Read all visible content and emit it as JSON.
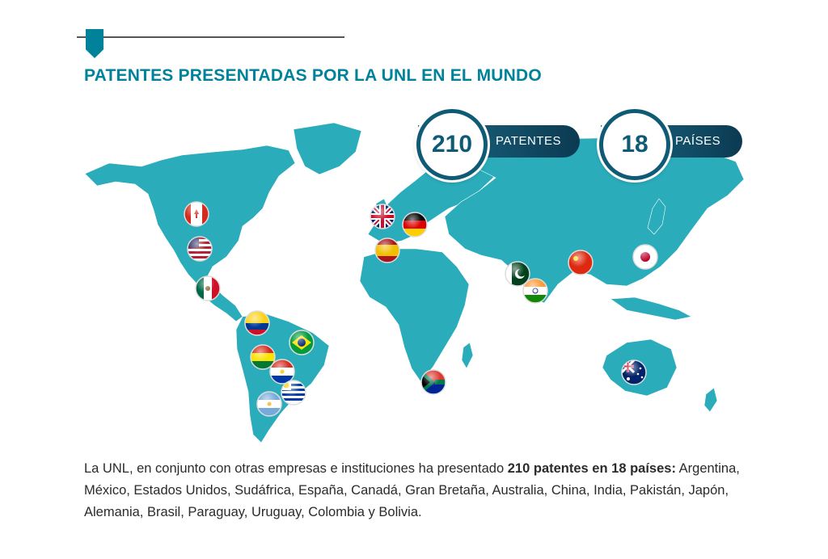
{
  "title": "PATENTES PRESENTADAS POR LA UNL EN EL MUNDO",
  "stats": [
    {
      "value": "210",
      "label": "PATENTES"
    },
    {
      "value": "18",
      "label": "PAÍSES"
    }
  ],
  "description": {
    "intro": "La UNL, en conjunto con otras empresas e instituciones ha presentado",
    "highlight": "210 patentes en 18 países:",
    "countries": "Argentina, México, Estados Unidos, Sudáfrica, España, Canadá, Gran Bretaña, Australia, China, India, Pakistán, Japón, Alemania, Brasil, Paraguay, Uruguay, Colombia y Bolivia."
  },
  "colors": {
    "accent": "#00829a",
    "map_land": "#2aacbb",
    "badge_dark": "#0f5a75"
  },
  "flag_markers": [
    {
      "country": "Canadá",
      "icon": "canada-flag-icon"
    },
    {
      "country": "Estados Unidos",
      "icon": "usa-flag-icon"
    },
    {
      "country": "México",
      "icon": "mexico-flag-icon"
    },
    {
      "country": "Colombia",
      "icon": "colombia-flag-icon"
    },
    {
      "country": "Brasil",
      "icon": "brazil-flag-icon"
    },
    {
      "country": "Bolivia",
      "icon": "bolivia-flag-icon"
    },
    {
      "country": "Paraguay",
      "icon": "paraguay-flag-icon"
    },
    {
      "country": "Uruguay",
      "icon": "uruguay-flag-icon"
    },
    {
      "country": "Argentina",
      "icon": "argentina-flag-icon"
    },
    {
      "country": "Gran Bretaña",
      "icon": "uk-flag-icon"
    },
    {
      "country": "Alemania",
      "icon": "germany-flag-icon"
    },
    {
      "country": "España",
      "icon": "spain-flag-icon"
    },
    {
      "country": "Sudáfrica",
      "icon": "south-africa-flag-icon"
    },
    {
      "country": "Pakistán",
      "icon": "pakistan-flag-icon"
    },
    {
      "country": "India",
      "icon": "india-flag-icon"
    },
    {
      "country": "China",
      "icon": "china-flag-icon"
    },
    {
      "country": "Japón",
      "icon": "japan-flag-icon"
    },
    {
      "country": "Australia",
      "icon": "australia-flag-icon"
    }
  ]
}
